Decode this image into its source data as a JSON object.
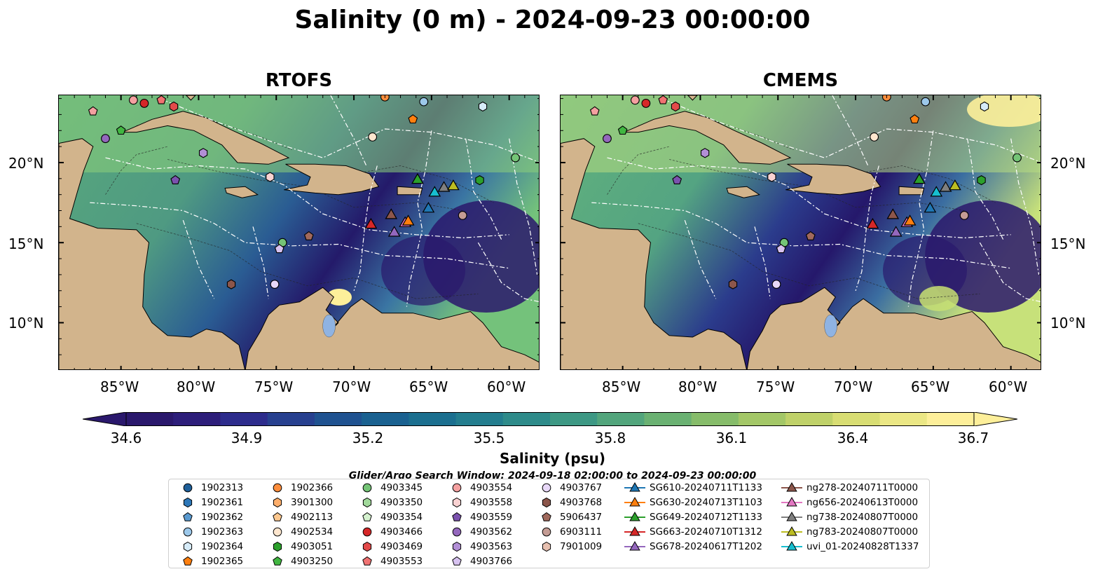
{
  "figure": {
    "title": "Salinity (0 m) - 2024-09-23 00:00:00"
  },
  "panels": [
    {
      "title": "RTOFS"
    },
    {
      "title": "CMEMS"
    }
  ],
  "map_axes": {
    "lon_ticks": [
      "85°W",
      "80°W",
      "75°W",
      "70°W",
      "65°W",
      "60°W"
    ],
    "lat_ticks": [
      "20°N",
      "15°N",
      "10°N"
    ],
    "lon_range": [
      -89,
      -58
    ],
    "lat_range": [
      7,
      24.2
    ],
    "land_color": "#d2b48c",
    "ocean_low_color": "#2a186c",
    "ocean_high_color": "#fdef9a"
  },
  "colorbar": {
    "label": "Salinity (psu)",
    "ticks": [
      "34.6",
      "34.9",
      "35.2",
      "35.5",
      "35.8",
      "36.1",
      "36.4",
      "36.7"
    ],
    "min": 34.6,
    "max": 36.7,
    "extend": "both",
    "colormap": "haline"
  },
  "search_window": "Glider/Argo Search Window: 2024-09-18 02:00:00 to 2024-09-23 00:00:00",
  "legend": {
    "columns": [
      [
        {
          "label": "1902313",
          "marker": "circle",
          "color": "#1f5f99"
        },
        {
          "label": "1902361",
          "marker": "hexagon",
          "color": "#2d77b8"
        },
        {
          "label": "1902362",
          "marker": "pentagon",
          "color": "#5a9ad0"
        },
        {
          "label": "1902363",
          "marker": "circle",
          "color": "#9cc8ea"
        },
        {
          "label": "1902364",
          "marker": "hexagon",
          "color": "#d6ebf8"
        },
        {
          "label": "1902365",
          "marker": "pentagon",
          "color": "#ff7f0e"
        }
      ],
      [
        {
          "label": "1902366",
          "marker": "circle",
          "color": "#fd8d3c"
        },
        {
          "label": "3901300",
          "marker": "hexagon",
          "color": "#fdae6b"
        },
        {
          "label": "4902113",
          "marker": "pentagon",
          "color": "#fdc88f"
        },
        {
          "label": "4902534",
          "marker": "circle",
          "color": "#fee6ce"
        },
        {
          "label": "4903051",
          "marker": "hexagon",
          "color": "#2ca02c"
        },
        {
          "label": "4903250",
          "marker": "pentagon",
          "color": "#41b641"
        }
      ],
      [
        {
          "label": "4903345",
          "marker": "circle",
          "color": "#74c476"
        },
        {
          "label": "4903350",
          "marker": "hexagon",
          "color": "#a1d99b"
        },
        {
          "label": "4903354",
          "marker": "pentagon",
          "color": "#d5f2cf"
        },
        {
          "label": "4903466",
          "marker": "circle",
          "color": "#d62728"
        },
        {
          "label": "4903469",
          "marker": "hexagon",
          "color": "#e34a4a"
        },
        {
          "label": "4903553",
          "marker": "pentagon",
          "color": "#f07272"
        }
      ],
      [
        {
          "label": "4903554",
          "marker": "circle",
          "color": "#f4a0a0"
        },
        {
          "label": "4903558",
          "marker": "hexagon",
          "color": "#fad2d2"
        },
        {
          "label": "4903559",
          "marker": "pentagon",
          "color": "#7b52ae"
        },
        {
          "label": "4903562",
          "marker": "circle",
          "color": "#9467bd"
        },
        {
          "label": "4903563",
          "marker": "hexagon",
          "color": "#b28fd6"
        },
        {
          "label": "4903766",
          "marker": "pentagon",
          "color": "#d7c2f0"
        }
      ],
      [
        {
          "label": "4903767",
          "marker": "circle",
          "color": "#e8d8f8"
        },
        {
          "label": "4903768",
          "marker": "hexagon",
          "color": "#8c564b"
        },
        {
          "label": "5906437",
          "marker": "pentagon",
          "color": "#a0695c"
        },
        {
          "label": "6903111",
          "marker": "circle",
          "color": "#c49c94"
        },
        {
          "label": "7901009",
          "marker": "hexagon",
          "color": "#e7c0b0"
        }
      ],
      [
        {
          "label": "SG610-20240711T1133",
          "marker": "triangle",
          "color": "#1f77b4"
        },
        {
          "label": "SG630-20240713T1103",
          "marker": "triangle",
          "color": "#ff7f0e"
        },
        {
          "label": "SG649-20240712T1133",
          "marker": "triangle",
          "color": "#2ca02c"
        },
        {
          "label": "SG663-20240710T1312",
          "marker": "triangle",
          "color": "#d62728"
        },
        {
          "label": "SG678-20240617T1202",
          "marker": "triangle",
          "color": "#9467bd"
        }
      ],
      [
        {
          "label": "ng278-20240711T0000",
          "marker": "triangle",
          "color": "#8c564b"
        },
        {
          "label": "ng656-20240613T0000",
          "marker": "triangle",
          "color": "#e377c2"
        },
        {
          "label": "ng738-20240807T0000",
          "marker": "triangle",
          "color": "#7f7f7f"
        },
        {
          "label": "ng783-20240807T0000",
          "marker": "triangle",
          "color": "#bcbd22"
        },
        {
          "label": "uvi_01-20240828T1337",
          "marker": "triangle",
          "color": "#17becf"
        }
      ]
    ]
  },
  "markers": [
    {
      "lon": -84.2,
      "lat": 23.9,
      "marker": "circle",
      "color": "#f4a0a0"
    },
    {
      "lon": -83.5,
      "lat": 23.7,
      "marker": "circle",
      "color": "#d62728"
    },
    {
      "lon": -82.4,
      "lat": 23.9,
      "marker": "pentagon",
      "color": "#f07272"
    },
    {
      "lon": -81.6,
      "lat": 23.5,
      "marker": "hexagon",
      "color": "#e34a4a"
    },
    {
      "lon": -86.8,
      "lat": 23.2,
      "marker": "pentagon",
      "color": "#f4a0a0"
    },
    {
      "lon": -85.0,
      "lat": 22.0,
      "marker": "pentagon",
      "color": "#41b641"
    },
    {
      "lon": -86.0,
      "lat": 21.5,
      "marker": "circle",
      "color": "#9467bd"
    },
    {
      "lon": -79.7,
      "lat": 20.6,
      "marker": "hexagon",
      "color": "#b28fd6"
    },
    {
      "lon": -81.5,
      "lat": 18.9,
      "marker": "pentagon",
      "color": "#7b52ae"
    },
    {
      "lon": -75.4,
      "lat": 19.1,
      "marker": "hexagon",
      "color": "#fad2d2"
    },
    {
      "lon": -68.0,
      "lat": 24.1,
      "marker": "circle",
      "color": "#fd8d3c"
    },
    {
      "lon": -65.5,
      "lat": 23.8,
      "marker": "circle",
      "color": "#9cc8ea"
    },
    {
      "lon": -61.7,
      "lat": 23.5,
      "marker": "hexagon",
      "color": "#d6ebf8"
    },
    {
      "lon": -66.2,
      "lat": 22.7,
      "marker": "pentagon",
      "color": "#ff7f0e"
    },
    {
      "lon": -68.8,
      "lat": 21.6,
      "marker": "circle",
      "color": "#fee6ce"
    },
    {
      "lon": -59.6,
      "lat": 20.3,
      "marker": "circle",
      "color": "#74c476"
    },
    {
      "lon": -61.9,
      "lat": 18.9,
      "marker": "hexagon",
      "color": "#2ca02c"
    },
    {
      "lon": -63.0,
      "lat": 16.7,
      "marker": "circle",
      "color": "#c49c94"
    },
    {
      "lon": -74.6,
      "lat": 15.0,
      "marker": "circle",
      "color": "#74c476"
    },
    {
      "lon": -74.8,
      "lat": 14.6,
      "marker": "pentagon",
      "color": "#d7c2f0"
    },
    {
      "lon": -72.9,
      "lat": 15.4,
      "marker": "pentagon",
      "color": "#a0695c"
    },
    {
      "lon": -77.9,
      "lat": 12.4,
      "marker": "hexagon",
      "color": "#8c564b"
    },
    {
      "lon": -75.1,
      "lat": 12.4,
      "marker": "circle",
      "color": "#e8d8f8"
    }
  ],
  "glider_markers": [
    {
      "lon": -68.9,
      "lat": 16.1,
      "color": "#d62728"
    },
    {
      "lon": -67.6,
      "lat": 16.7,
      "color": "#8c564b"
    },
    {
      "lon": -67.4,
      "lat": 15.6,
      "color": "#9467bd"
    },
    {
      "lon": -66.7,
      "lat": 16.2,
      "color": "#e377c2"
    },
    {
      "lon": -66.5,
      "lat": 16.3,
      "color": "#ff7f0e"
    },
    {
      "lon": -65.9,
      "lat": 18.9,
      "color": "#2ca02c"
    },
    {
      "lon": -65.2,
      "lat": 17.1,
      "color": "#1f77b4"
    },
    {
      "lon": -64.8,
      "lat": 18.1,
      "color": "#17becf"
    },
    {
      "lon": -64.2,
      "lat": 18.4,
      "color": "#7f7f7f"
    },
    {
      "lon": -63.6,
      "lat": 18.5,
      "color": "#bcbd22"
    }
  ]
}
